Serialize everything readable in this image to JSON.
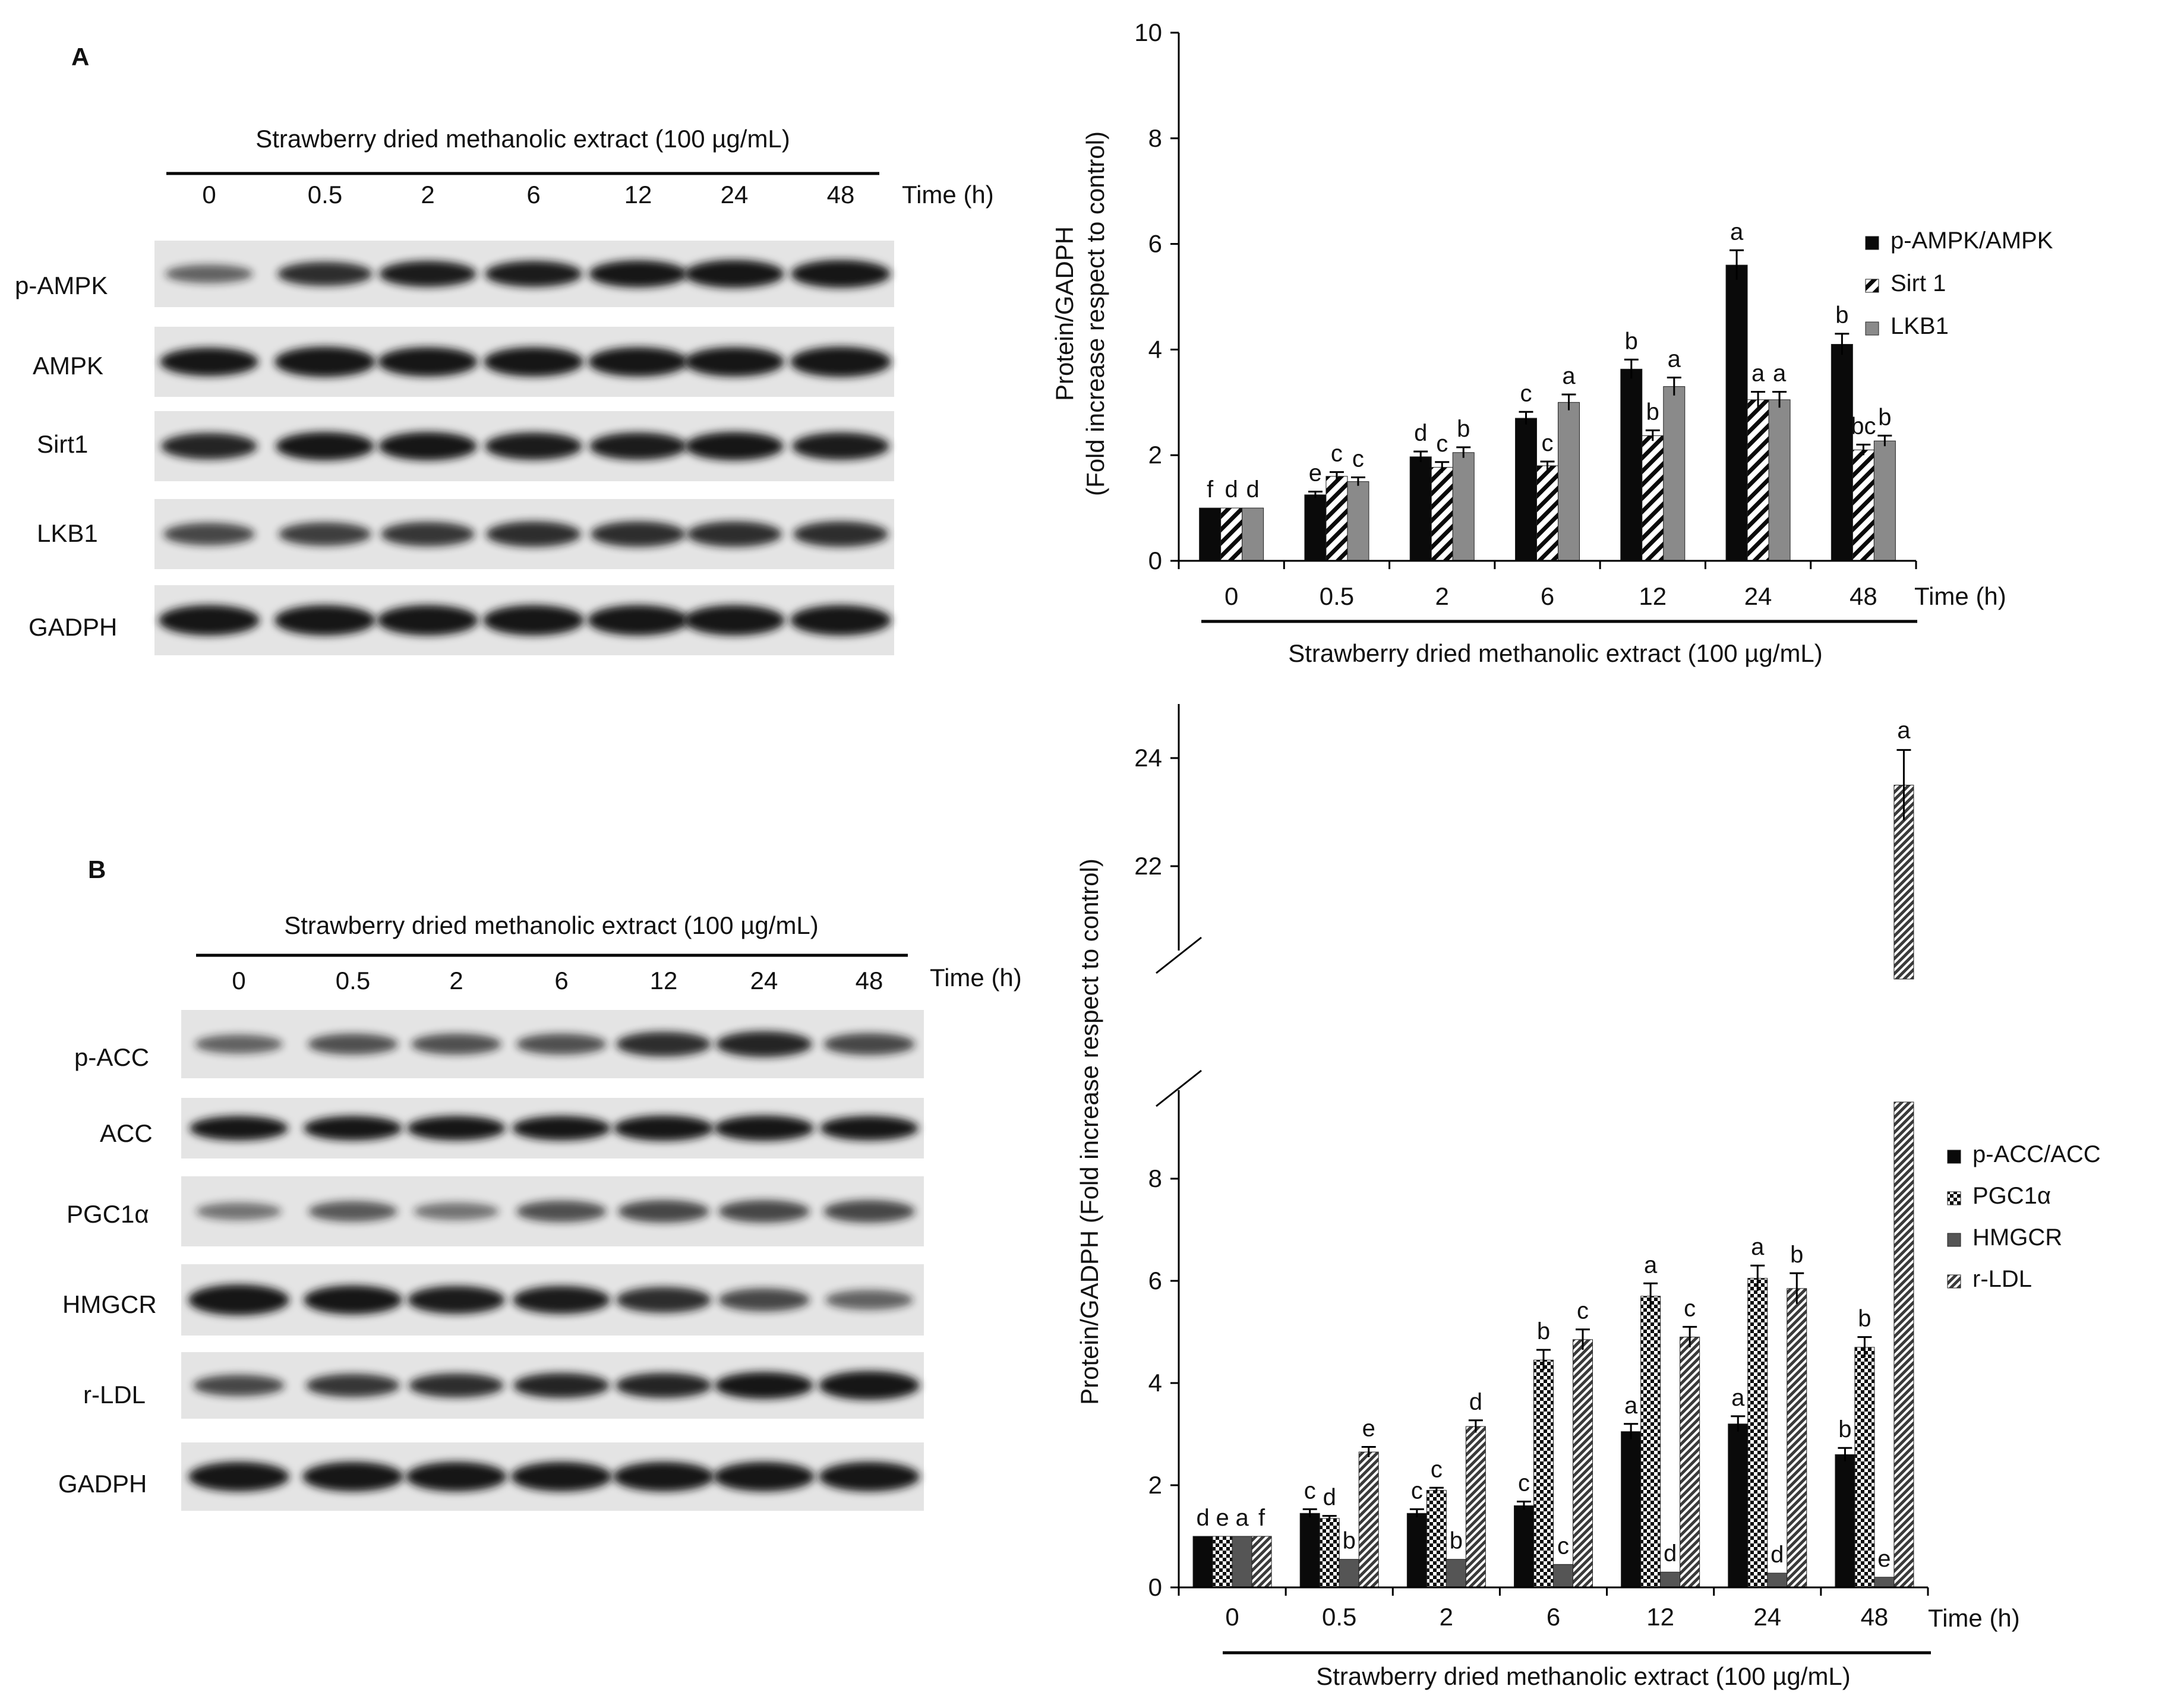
{
  "colors": {
    "black": "#0a0a0a",
    "gray": "#8a8a8a",
    "dark_gray": "#555555",
    "blot_bg": "#e4e4e4",
    "band": "#141414"
  },
  "panel_a": {
    "letter": "A",
    "treatment_label": "Strawberry dried methanolic extract (100 µg/mL)",
    "time_label": "Time (h)",
    "lanes": [
      "0",
      "0.5",
      "2",
      "6",
      "12",
      "24",
      "48"
    ],
    "rows": [
      {
        "label": "p-AMPK",
        "intensity": [
          0.45,
          0.75,
          0.85,
          0.85,
          0.9,
          0.95,
          0.95
        ]
      },
      {
        "label": "AMPK",
        "intensity": [
          0.9,
          1.0,
          0.95,
          0.95,
          0.95,
          0.95,
          1.0
        ]
      },
      {
        "label": "Sirt1",
        "intensity": [
          0.8,
          0.9,
          0.9,
          0.85,
          0.85,
          0.9,
          0.85
        ]
      },
      {
        "label": "LKB1",
        "intensity": [
          0.6,
          0.65,
          0.7,
          0.75,
          0.75,
          0.75,
          0.75
        ]
      },
      {
        "label": "GADPH",
        "intensity": [
          1.0,
          1.0,
          1.0,
          1.0,
          1.0,
          1.0,
          1.0
        ]
      }
    ]
  },
  "panel_b": {
    "letter": "B",
    "treatment_label": "Strawberry dried methanolic extract (100 µg/mL)",
    "time_label": "Time (h)",
    "lanes": [
      "0",
      "0.5",
      "2",
      "6",
      "12",
      "24",
      "48"
    ],
    "rows": [
      {
        "label": "p-ACC",
        "intensity": [
          0.45,
          0.55,
          0.55,
          0.55,
          0.75,
          0.8,
          0.6
        ]
      },
      {
        "label": "ACC",
        "intensity": [
          0.9,
          0.9,
          0.9,
          0.9,
          0.95,
          0.95,
          0.9
        ]
      },
      {
        "label": "PGC1α",
        "intensity": [
          0.35,
          0.5,
          0.35,
          0.55,
          0.6,
          0.6,
          0.6
        ]
      },
      {
        "label": "HMGCR",
        "intensity": [
          1.0,
          0.9,
          0.85,
          0.85,
          0.75,
          0.6,
          0.45
        ]
      },
      {
        "label": "r-LDL",
        "intensity": [
          0.6,
          0.7,
          0.75,
          0.8,
          0.8,
          0.9,
          1.0
        ]
      },
      {
        "label": "GADPH",
        "intensity": [
          1.0,
          1.0,
          1.0,
          1.0,
          1.0,
          1.0,
          1.0
        ]
      }
    ]
  },
  "chart_data": [
    {
      "type": "bar",
      "title": "",
      "categories": [
        "0",
        "0.5",
        "2",
        "6",
        "12",
        "24",
        "48"
      ],
      "xlabel": "Strawberry dried methanolic extract (100 µg/mL)",
      "time_label": "Time (h)",
      "ylabel_line1": "Protein/GADPH",
      "ylabel_line2": "(Fold increase respect to control)",
      "ylim": [
        0,
        10
      ],
      "yticks": [
        0,
        2,
        4,
        6,
        8,
        10
      ],
      "legend_position": "right",
      "series": [
        {
          "name": "p-AMPK/AMPK",
          "fill": "solid-black",
          "values": [
            1.0,
            1.25,
            1.97,
            2.7,
            3.63,
            5.6,
            4.1
          ],
          "errors": [
            0.0,
            0.06,
            0.1,
            0.12,
            0.18,
            0.28,
            0.2
          ],
          "letters": [
            "f",
            "e",
            "d",
            "c",
            "b",
            "a",
            "b"
          ]
        },
        {
          "name": "Sirt 1",
          "fill": "diagonal-hatch",
          "values": [
            1.0,
            1.6,
            1.77,
            1.8,
            2.37,
            3.05,
            2.1
          ],
          "errors": [
            0.0,
            0.08,
            0.1,
            0.08,
            0.1,
            0.15,
            0.1
          ],
          "letters": [
            "d",
            "c",
            "c",
            "c",
            "b",
            "a",
            "bc"
          ]
        },
        {
          "name": "LKB1",
          "fill": "solid-gray",
          "values": [
            1.0,
            1.5,
            2.05,
            3.0,
            3.3,
            3.05,
            2.27
          ],
          "errors": [
            0.0,
            0.08,
            0.1,
            0.15,
            0.17,
            0.15,
            0.1
          ],
          "letters": [
            "d",
            "c",
            "b",
            "a",
            "a",
            "a",
            "b"
          ]
        }
      ]
    },
    {
      "type": "bar",
      "title": "",
      "categories": [
        "0",
        "0.5",
        "2",
        "6",
        "12",
        "24",
        "48"
      ],
      "xlabel": "Strawberry dried methanolic extract (100 µg/mL)",
      "time_label": "Time (h)",
      "ylabel": "Protein/GADPH  (Fold increase respect to control)",
      "ylim_lower": [
        0,
        9.5
      ],
      "yticks_lower": [
        0,
        2,
        4,
        6,
        8
      ],
      "ylim_upper": [
        20,
        25
      ],
      "yticks_upper": [
        22,
        24
      ],
      "axis_break": true,
      "legend_position": "right",
      "series": [
        {
          "name": "p-ACC/ACC",
          "fill": "solid-black",
          "values": [
            1.0,
            1.45,
            1.45,
            1.6,
            3.05,
            3.2,
            2.6
          ],
          "errors": [
            0.0,
            0.08,
            0.08,
            0.08,
            0.15,
            0.15,
            0.13
          ],
          "letters": [
            "d",
            "c",
            "c",
            "c",
            "a",
            "a",
            "b"
          ]
        },
        {
          "name": "PGC1α",
          "fill": "checker",
          "values": [
            1.0,
            1.35,
            1.9,
            4.45,
            5.7,
            6.05,
            4.7
          ],
          "errors": [
            0.0,
            0.05,
            0.05,
            0.2,
            0.25,
            0.25,
            0.2
          ],
          "letters": [
            "e",
            "d",
            "c",
            "b",
            "a",
            "a",
            "b"
          ]
        },
        {
          "name": "HMGCR",
          "fill": "solid-dark-gray",
          "values": [
            1.0,
            0.55,
            0.55,
            0.45,
            0.3,
            0.28,
            0.2
          ],
          "errors": [
            0.0,
            0.0,
            0.0,
            0.0,
            0.0,
            0.0,
            0.0
          ],
          "letters": [
            "a",
            "b",
            "b",
            "c",
            "d",
            "d",
            "e"
          ]
        },
        {
          "name": "r-LDL",
          "fill": "dense-diagonal",
          "values": [
            1.0,
            2.65,
            3.15,
            4.85,
            4.9,
            5.85,
            23.5
          ],
          "errors": [
            0.0,
            0.1,
            0.12,
            0.2,
            0.2,
            0.3,
            0.65
          ],
          "letters": [
            "f",
            "e",
            "d",
            "c",
            "c",
            "b",
            "a"
          ]
        }
      ]
    }
  ]
}
